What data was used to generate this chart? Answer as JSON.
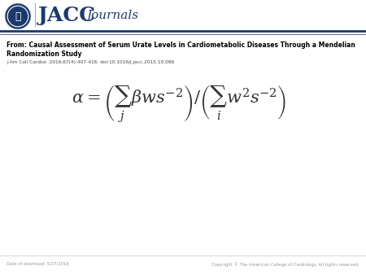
{
  "bg_color": "#ffffff",
  "header_border_color": "#1a3a6b",
  "header_text": "JACC",
  "header_subtext": "Journals",
  "title_line1": "From: Causal Assessment of Serum Urate Levels in Cardiometabolic Diseases Through a Mendelian",
  "title_line2": "Randomization Study",
  "citation": "J Am Coll Cardiol. 2016;67(4):407-416. doi:10.1016/j.jacc.2015.10.086",
  "formula": "\\alpha = \\left(\\sum_j \\beta w s^{-2}\\right)/\\left(\\sum_i w^2 s^{-2}\\right)",
  "footer_left": "Date of download: 5/27/2016",
  "footer_right": "Copyright © The American College of Cardiology. All rights reserved.",
  "logo_circle_color": "#1a3a6b",
  "jacc_color": "#1a3a6b",
  "title_color": "#000000",
  "citation_color": "#444444",
  "formula_color": "#333333",
  "footer_color": "#999999",
  "header_thick_line_color": "#1a3a6b",
  "header_thin_line_color": "#1a3a6b"
}
